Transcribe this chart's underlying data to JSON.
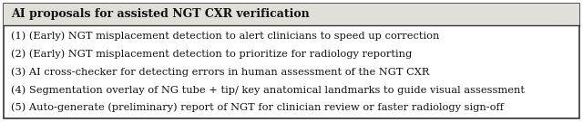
{
  "title": "AI proposals for assisted NGT CXR verification",
  "items": [
    "(1) (Early) NGT misplacement detection to alert clinicians to speed up correction",
    "(2) (Early) NGT misplacement detection to prioritize for radiology reporting",
    "(3) AI cross-checker for detecting errors in human assessment of the NGT CXR",
    "(4) Segmentation overlay of NG tube + tip/ key anatomical landmarks to guide visual assessment",
    "(5) Auto-generate (preliminary) report of NGT for clinician review or faster radiology sign-off"
  ],
  "bg_color": "#ffffff",
  "border_color": "#333333",
  "title_fontsize": 9.0,
  "body_fontsize": 8.2,
  "title_bg_color": "#e0e0d8",
  "body_bg_color": "#ffffff",
  "text_color": "#111111",
  "fig_width": 6.4,
  "fig_height": 1.35,
  "dpi": 100
}
